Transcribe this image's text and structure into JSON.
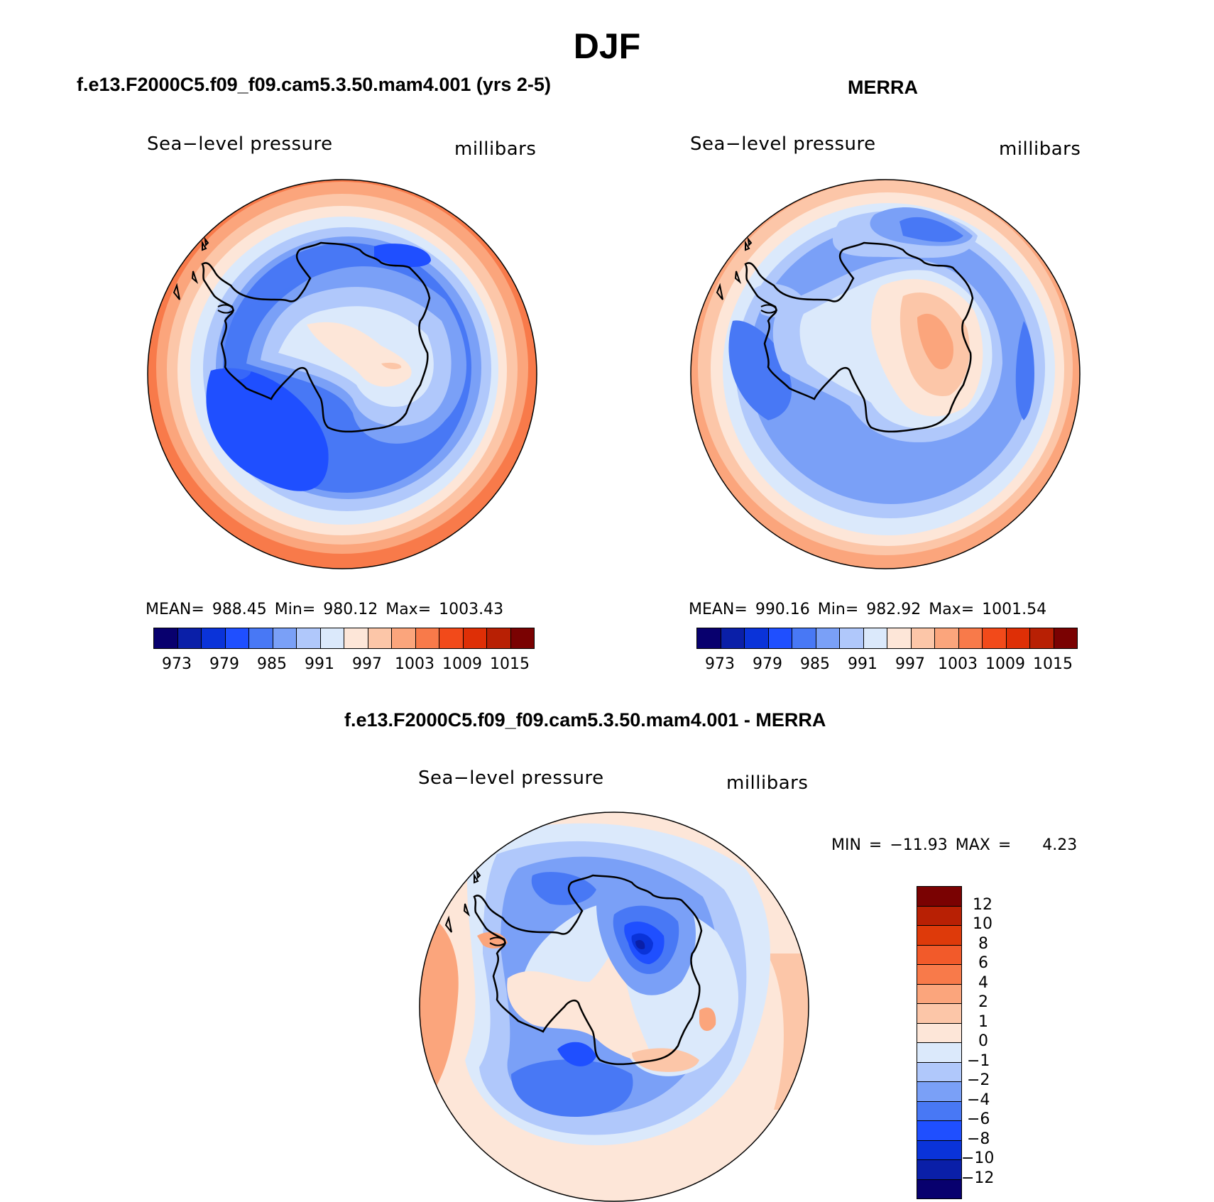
{
  "figure": {
    "title": "DJF"
  },
  "panels": {
    "model": {
      "title": "f.e13.F2000C5.f09_f09.cam5.3.50.mam4.001 (yrs 2-5)",
      "variable": "Sea−level pressure",
      "units": "millibars",
      "stats": "MEAN= 988.45   Min= 980.12   Max= 1003.43",
      "colorbar_ticks": [
        "973",
        "979",
        "985",
        "991",
        "997",
        "1003",
        "1009",
        "1015"
      ]
    },
    "obs": {
      "title": "MERRA",
      "variable": "Sea−level pressure",
      "units": "millibars",
      "stats": "MEAN= 990.16   Min= 982.92   Max= 1001.54",
      "colorbar_ticks": [
        "973",
        "979",
        "985",
        "991",
        "997",
        "1003",
        "1009",
        "1015"
      ]
    },
    "diff": {
      "title": "f.e13.F2000C5.f09_f09.cam5.3.50.mam4.001 - MERRA",
      "variable": "Sea−level pressure",
      "units": "millibars",
      "stats": "MIN = −11.93 MAX =    4.23",
      "colorbar_ticks": [
        "12",
        "10",
        "8",
        "6",
        "4",
        "2",
        "1",
        "0",
        "−1",
        "−2",
        "−4",
        "−6",
        "−8",
        "−10",
        "−12"
      ]
    }
  },
  "colors": {
    "abs_scale": [
      "#08006e",
      "#0a1fa8",
      "#0a33d9",
      "#1f4fff",
      "#4878f5",
      "#7aa0f7",
      "#b0c8fb",
      "#dbe9fb",
      "#fde6d8",
      "#fcc6a8",
      "#fba57c",
      "#f87a4a",
      "#f24a1a",
      "#de2f06",
      "#b82004",
      "#7a0202"
    ],
    "diff_scale": [
      "#7a0202",
      "#b82004",
      "#de3a0a",
      "#f25a2a",
      "#f87a4a",
      "#fba57c",
      "#fcc6a8",
      "#fde6d8",
      "#dbe9fb",
      "#b0c8fb",
      "#7aa0f7",
      "#4878f5",
      "#1f4fff",
      "#0a33d9",
      "#0a1fa8"
    ],
    "land_outline": "#000000"
  }
}
